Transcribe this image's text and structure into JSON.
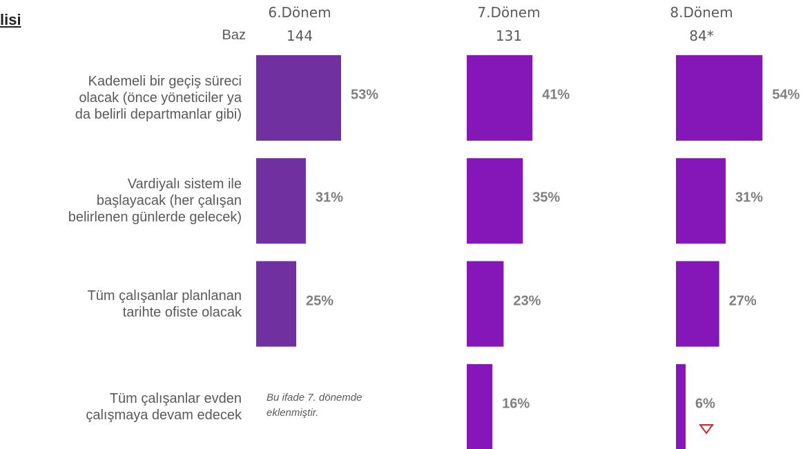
{
  "chart_data": {
    "type": "bar",
    "orientation": "horizontal",
    "title": "lisi",
    "base_label": "Baz",
    "categories": [
      "Kademeli bir geçiş süreci\nolacak (önce yöneticiler ya\nda belirli departmanlar gibi)",
      "Vardiyalı sistem ile\nbaşlayacak (her çalışan\nbelirlenen günlerde gelecek)",
      "Tüm çalışanlar planlanan\ntarihte ofiste olacak",
      "Tüm çalışanlar evden\nçalışmaya devam edecek"
    ],
    "xlim": [
      0,
      100
    ],
    "series": [
      {
        "name": "6.Dönem",
        "base": 144,
        "color": "#7030a0",
        "values": [
          53,
          31,
          25,
          null
        ],
        "value_labels": [
          "53%",
          "31%",
          "25%",
          null
        ]
      },
      {
        "name": "7.Dönem",
        "base": 131,
        "color": "#8516b8",
        "values": [
          41,
          35,
          23,
          16
        ],
        "value_labels": [
          "41%",
          "35%",
          "23%",
          "16%"
        ]
      },
      {
        "name": "8.Dönem",
        "base": {
          "value": 84,
          "label": "84*"
        },
        "color": "#8516b8",
        "values": [
          54,
          31,
          27,
          6
        ],
        "value_labels": [
          "54%",
          "31%",
          "27%",
          "6%"
        ]
      }
    ],
    "annotations": [
      "Bu ifade 7. dönemde\neklenmiştir."
    ]
  }
}
